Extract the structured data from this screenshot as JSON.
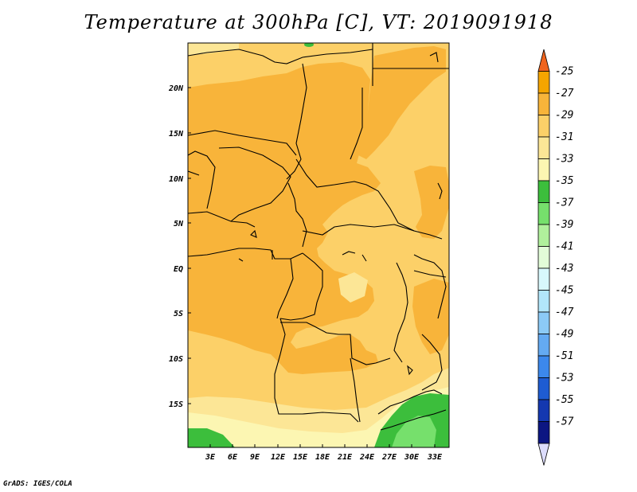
{
  "title": "Temperature at 300hPa [C], VT: 2019091918",
  "credit": "GrADS: IGES/COLA",
  "map": {
    "lat_labels": [
      "20N",
      "15N",
      "10N",
      "5N",
      "EQ",
      "5S",
      "10S",
      "15S"
    ],
    "lon_labels": [
      "3E",
      "6E",
      "9E",
      "12E",
      "15E",
      "18E",
      "21E",
      "24E",
      "27E",
      "30E",
      "33E"
    ]
  },
  "colorbar": {
    "labels": [
      "-25",
      "-27",
      "-29",
      "-31",
      "-33",
      "-35",
      "-37",
      "-39",
      "-41",
      "-43",
      "-45",
      "-47",
      "-49",
      "-51",
      "-53",
      "-55",
      "-57"
    ],
    "colors": [
      "#f0641e",
      "#f5a500",
      "#f8b43a",
      "#fcd068",
      "#fce696",
      "#fcf6b2",
      "#3cbe3c",
      "#76e06c",
      "#b0f09c",
      "#e2fcd8",
      "#d8f8fc",
      "#b2e6fa",
      "#8ccaf6",
      "#64aaf2",
      "#3c88ec",
      "#1e5cd2",
      "#1438b0",
      "#0c1682",
      "#dcdcfc"
    ]
  }
}
